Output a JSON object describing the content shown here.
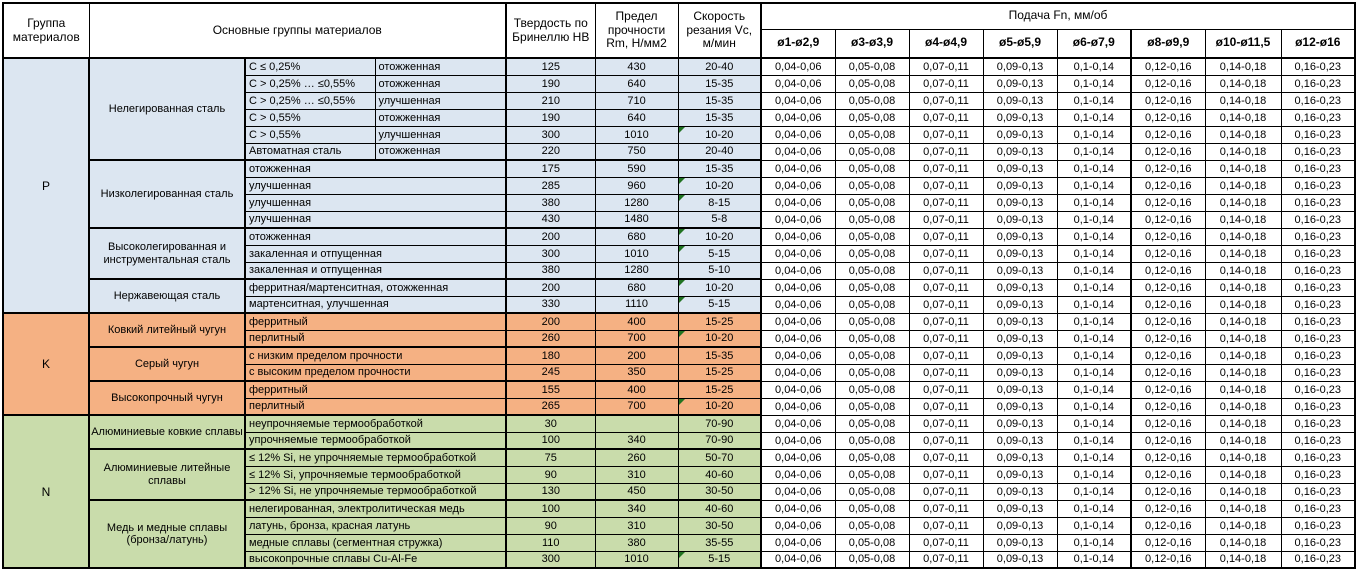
{
  "header": {
    "group": "Группа материалов",
    "main": "Основные группы материалов",
    "hb": "Твердость по Бринеллю HB",
    "rm": "Предел прочности Rm, Н/мм2",
    "vc": "Скорость резания Vc, м/мин",
    "feed": "Подача Fn, мм/об",
    "feed_cols": [
      "ø1-ø2,9",
      "ø3-ø3,9",
      "ø4-ø4,9",
      "ø5-ø5,9",
      "ø6-ø7,9",
      "ø8-ø9,9",
      "ø10-ø11,5",
      "ø12-ø16"
    ]
  },
  "feed_values": [
    "0,04-0,06",
    "0,05-0,08",
    "0,07-0,11",
    "0,09-0,13",
    "0,1-0,14",
    "0,12-0,16",
    "0,14-0,18",
    "0,16-0,23"
  ],
  "indicator_color": "#217321",
  "groups": [
    {
      "code": "P",
      "color": "#dce6f1",
      "subgroups": [
        {
          "name": "Нелегированная сталь",
          "rows": [
            {
              "spec": "C ≤ 0,25%",
              "state": "отожженная",
              "hb": "125",
              "rm": "430",
              "vc": "20-40"
            },
            {
              "spec": "C > 0,25% … ≤0,55%",
              "state": "отожженная",
              "hb": "190",
              "rm": "640",
              "vc": "15-35"
            },
            {
              "spec": "C > 0,25% … ≤0,55%",
              "state": "улучшенная",
              "hb": "210",
              "rm": "710",
              "vc": "15-35"
            },
            {
              "spec": "C > 0,55%",
              "state": "отожженная",
              "hb": "190",
              "rm": "640",
              "vc": "15-35"
            },
            {
              "spec": "C > 0,55%",
              "state": "улучшенная",
              "hb": "300",
              "rm": "1010",
              "vc": "10-20",
              "flag": true
            },
            {
              "spec": "Автоматная сталь",
              "state": "отожженная",
              "hb": "220",
              "rm": "750",
              "vc": "20-40"
            }
          ]
        },
        {
          "name": "Низколегированная сталь",
          "rows": [
            {
              "state": "отожженная",
              "hb": "175",
              "rm": "590",
              "vc": "15-35"
            },
            {
              "state": "улучшенная",
              "hb": "285",
              "rm": "960",
              "vc": "10-20",
              "flag": true
            },
            {
              "state": "улучшенная",
              "hb": "380",
              "rm": "1280",
              "vc": "8-15",
              "flag": true
            },
            {
              "state": "улучшенная",
              "hb": "430",
              "rm": "1480",
              "vc": "5-8"
            }
          ]
        },
        {
          "name": "Высоколегированная и инструментальная сталь",
          "rows": [
            {
              "state": "отожженная",
              "hb": "200",
              "rm": "680",
              "vc": "10-20",
              "flag": true
            },
            {
              "state": "закаленная и отпущенная",
              "hb": "300",
              "rm": "1010",
              "vc": "5-15",
              "flag": true
            },
            {
              "state": "закаленная и отпущенная",
              "hb": "380",
              "rm": "1280",
              "vc": "5-10"
            }
          ]
        },
        {
          "name": "Нержавеющая сталь",
          "rows": [
            {
              "state": "ферритная/мартенситная, отожженная",
              "hb": "200",
              "rm": "680",
              "vc": "10-20",
              "flag": true
            },
            {
              "state": "мартенситная, улучшенная",
              "hb": "330",
              "rm": "1110",
              "vc": "5-15",
              "flag": true
            }
          ]
        }
      ]
    },
    {
      "code": "K",
      "color": "#f5b183",
      "subgroups": [
        {
          "name": "Ковкий литейный чугун",
          "rows": [
            {
              "state": "ферритный",
              "hb": "200",
              "rm": "400",
              "vc": "15-25"
            },
            {
              "state": "перлитный",
              "hb": "260",
              "rm": "700",
              "vc": "10-20",
              "flag": true
            }
          ]
        },
        {
          "name": "Серый чугун",
          "rows": [
            {
              "state": "с низким пределом прочности",
              "hb": "180",
              "rm": "200",
              "vc": "15-35"
            },
            {
              "state": "с высоким пределом прочности",
              "hb": "245",
              "rm": "350",
              "vc": "15-25"
            }
          ]
        },
        {
          "name": "Высокопрочный чугун",
          "rows": [
            {
              "state": "ферритный",
              "hb": "155",
              "rm": "400",
              "vc": "15-25"
            },
            {
              "state": "перлитный",
              "hb": "265",
              "rm": "700",
              "vc": "10-20",
              "flag": true
            }
          ]
        }
      ]
    },
    {
      "code": "N",
      "color": "#c9dcab",
      "subgroups": [
        {
          "name": "Алюминиевые ковкие сплавы",
          "rows": [
            {
              "state": "неупрочняемые термообработкой",
              "hb": "30",
              "rm": "",
              "vc": "70-90"
            },
            {
              "state": "упрочняемые термообработкой",
              "hb": "100",
              "rm": "340",
              "vc": "70-90"
            }
          ]
        },
        {
          "name": "Алюминиевые литейные сплавы",
          "rows": [
            {
              "state": "≤ 12% Si, не упрочняемые термообработкой",
              "hb": "75",
              "rm": "260",
              "vc": "50-70"
            },
            {
              "state": "≤ 12% Si, упрочняемые термообработкой",
              "hb": "90",
              "rm": "310",
              "vc": "40-60"
            },
            {
              "state": "> 12% Si, не упрочняемые термообработкой",
              "hb": "130",
              "rm": "450",
              "vc": "30-50"
            }
          ]
        },
        {
          "name": "Медь и медные сплавы (бронза/латунь)",
          "rows": [
            {
              "state": "нелегированная, электролитическая медь",
              "hb": "100",
              "rm": "340",
              "vc": "40-60"
            },
            {
              "state": "латунь, бронза, красная латунь",
              "hb": "90",
              "rm": "310",
              "vc": "30-50"
            },
            {
              "state": "медные сплавы (сегментная стружка)",
              "hb": "110",
              "rm": "380",
              "vc": "35-55"
            },
            {
              "state": "высокопрочные сплавы Cu-Al-Fe",
              "hb": "300",
              "rm": "1010",
              "vc": "5-15",
              "flag": true
            }
          ]
        }
      ]
    }
  ]
}
